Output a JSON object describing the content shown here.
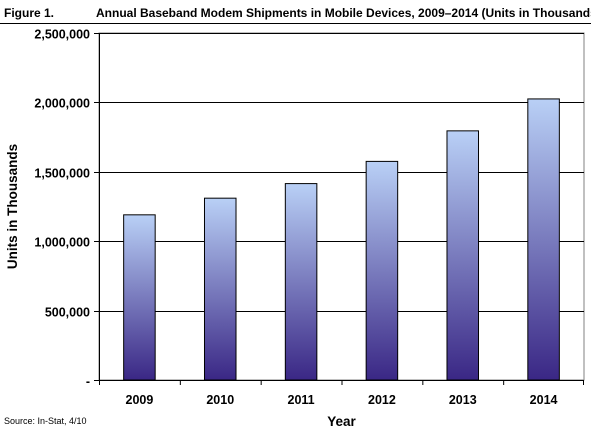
{
  "figure": {
    "number_label": "Figure 1.",
    "title": "Annual Baseband Modem Shipments in Mobile Devices, 2009–2014 (Units in Thousands)",
    "source": "Source: In-Stat, 4/10"
  },
  "colors": {
    "bar_top": "#b9d0f6",
    "bar_bottom": "#3a2785",
    "gridline": "#000000",
    "frame": "#808080",
    "background": "#ffffff"
  },
  "chart_data": {
    "type": "bar",
    "title": "Annual Baseband Modem Shipments in Mobile Devices, 2009–2014 (Units in Thousands)",
    "xlabel": "Year",
    "ylabel": "Units in Thousands",
    "categories": [
      "2009",
      "2010",
      "2011",
      "2012",
      "2013",
      "2014"
    ],
    "values": [
      1190000,
      1310000,
      1415000,
      1575000,
      1795000,
      2025000
    ],
    "ylim": [
      0,
      2500000
    ],
    "yticks": [
      0,
      500000,
      1000000,
      1500000,
      2000000,
      2500000
    ],
    "ytick_labels": [
      "-",
      "500,000",
      "1,000,000",
      "1,500,000",
      "2,000,000",
      "2,500,000"
    ],
    "grid": true,
    "legend": "none"
  }
}
